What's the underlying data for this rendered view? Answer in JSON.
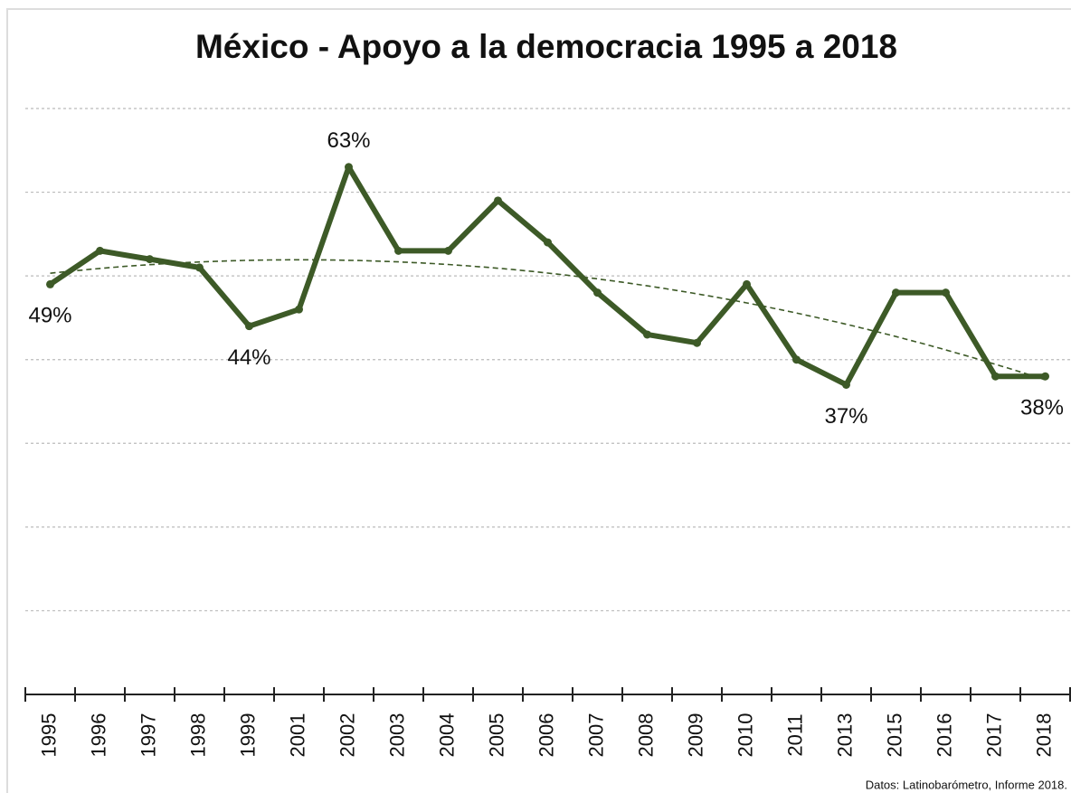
{
  "chart_data": {
    "type": "line",
    "title": "México - Apoyo a la democracia 1995 a 2018",
    "categories": [
      "1995",
      "1996",
      "1997",
      "1998",
      "1999",
      "2001",
      "2002",
      "2003",
      "2004",
      "2005",
      "2006",
      "2007",
      "2008",
      "2009",
      "2010",
      "2011",
      "2013",
      "2015",
      "2016",
      "2017",
      "2018"
    ],
    "series": [
      {
        "color": "#3d5a27",
        "values": [
          49,
          53,
          52,
          51,
          44,
          46,
          63,
          53,
          53,
          59,
          54,
          48,
          43,
          42,
          49,
          40,
          37,
          48,
          48,
          38,
          38
        ],
        "value_labels": [
          "49%",
          null,
          null,
          null,
          "44%",
          null,
          "63%",
          null,
          null,
          null,
          null,
          null,
          null,
          null,
          null,
          null,
          "37%",
          null,
          null,
          null,
          "38%"
        ]
      }
    ],
    "trendline": {
      "type": "polynomial",
      "order": 2,
      "color": "#3d5a27"
    },
    "ylim": [
      0,
      70
    ],
    "yticks": [
      10,
      20,
      30,
      40,
      50,
      60,
      70
    ],
    "grid": true,
    "source": "Datos: Latinobarómetro, Informe 2018."
  }
}
